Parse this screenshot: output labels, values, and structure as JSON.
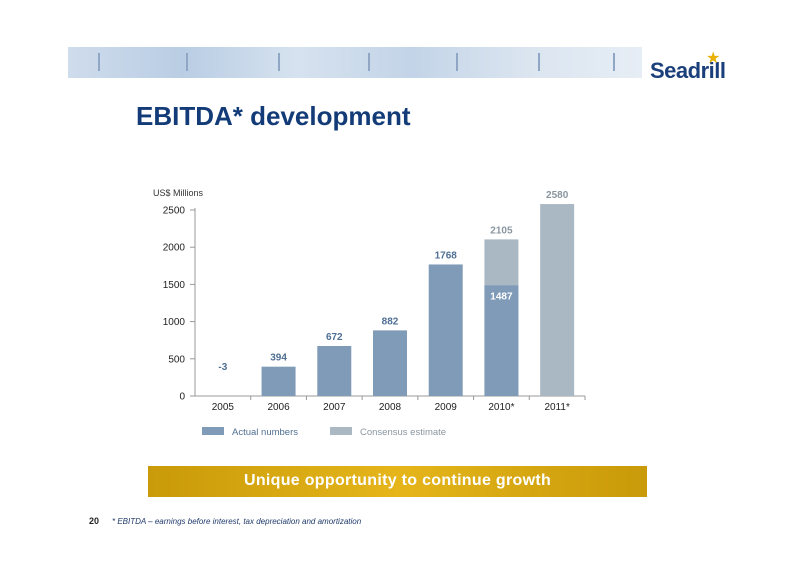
{
  "logo": {
    "name": "Seadrill"
  },
  "slide": {
    "title": "EBITDA* development",
    "page_number": "20"
  },
  "tagline": "Unique opportunity to continue growth",
  "footnote": "* EBITDA – earnings before interest, tax depreciation and amortization",
  "colors": {
    "actual": "#7f9bb8",
    "consensus": "#aab8c4",
    "title": "#123b78",
    "accent": "#e5b51a"
  },
  "chart_data": {
    "type": "bar",
    "ylabel": "US$ Millions",
    "ylim": [
      0,
      2500
    ],
    "yticks": [
      0,
      500,
      1000,
      1500,
      2000,
      2500
    ],
    "categories": [
      "2005",
      "2006",
      "2007",
      "2008",
      "2009",
      "2010*",
      "2011*"
    ],
    "series": [
      {
        "name": "Actual numbers",
        "values": [
          -3,
          394,
          672,
          882,
          1768,
          1487,
          null
        ]
      },
      {
        "name": "Consensus estimate",
        "values": [
          null,
          null,
          null,
          null,
          null,
          2105,
          2580
        ]
      }
    ],
    "data_labels": [
      "-3",
      "394",
      "672",
      "882",
      "1768",
      "2105",
      "2580"
    ],
    "inner_labels": {
      "2010*": "1487"
    },
    "legend": "bottom"
  }
}
